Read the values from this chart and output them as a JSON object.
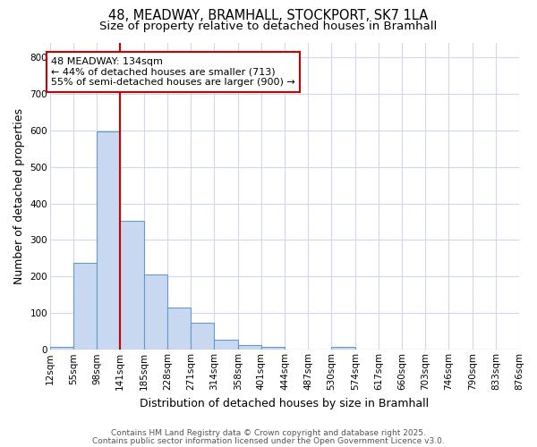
{
  "title_line1": "48, MEADWAY, BRAMHALL, STOCKPORT, SK7 1LA",
  "title_line2": "Size of property relative to detached houses in Bramhall",
  "xlabel": "Distribution of detached houses by size in Bramhall",
  "ylabel": "Number of detached properties",
  "bin_edges": [
    12,
    55,
    98,
    141,
    185,
    228,
    271,
    314,
    358,
    401,
    444,
    487,
    530,
    574,
    617,
    660,
    703,
    746,
    790,
    833,
    876
  ],
  "bin_heights": [
    8,
    238,
    597,
    353,
    205,
    115,
    73,
    27,
    13,
    8,
    0,
    0,
    8,
    0,
    0,
    0,
    0,
    0,
    0,
    0
  ],
  "bar_color": "#c8d8f0",
  "bar_edgecolor": "#6699cc",
  "vline_x": 141,
  "vline_color": "#cc0000",
  "annotation_line1": "48 MEADWAY: 134sqm",
  "annotation_line2": "← 44% of detached houses are smaller (713)",
  "annotation_line3": "55% of semi-detached houses are larger (900) →",
  "annotation_box_color": "white",
  "annotation_box_edgecolor": "#cc0000",
  "annotation_fontsize": 8.0,
  "ylim": [
    0,
    840
  ],
  "yticks": [
    0,
    100,
    200,
    300,
    400,
    500,
    600,
    700,
    800
  ],
  "background_color": "#ffffff",
  "grid_color": "#d0d8ee",
  "footer_line1": "Contains HM Land Registry data © Crown copyright and database right 2025.",
  "footer_line2": "Contains public sector information licensed under the Open Government Licence v3.0.",
  "title_fontsize": 10.5,
  "subtitle_fontsize": 9.5,
  "axis_label_fontsize": 9,
  "tick_fontsize": 7.5,
  "footer_fontsize": 6.5
}
